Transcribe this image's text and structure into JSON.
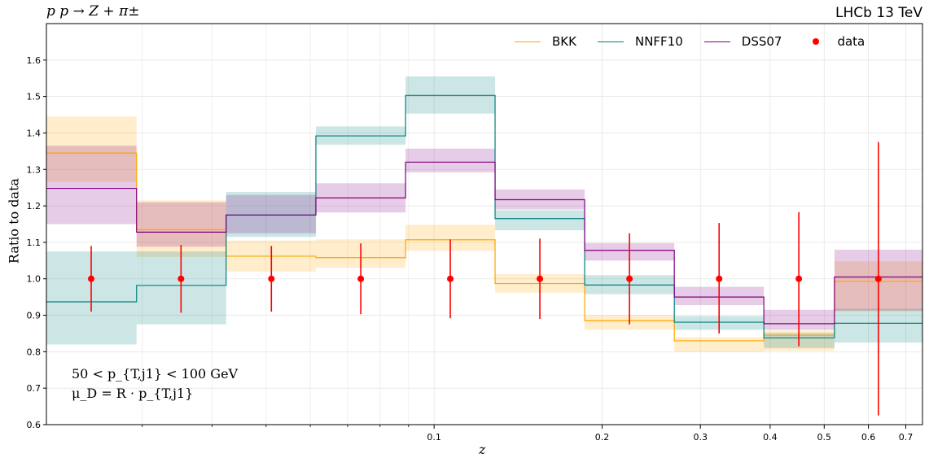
{
  "title_left": "p p → Z + π±",
  "title_right": "LHCb 13 TeV",
  "annotation": {
    "line1": "50 < p_{T,j1} < 100 GeV",
    "line2": "μ_D = R · p_{T,j1}"
  },
  "chart_data": {
    "type": "step",
    "xlabel": "z",
    "ylabel": "Ratio to data",
    "xscale": "log",
    "xlim": [
      0.0202,
      0.75
    ],
    "ylim": [
      0.6,
      1.7
    ],
    "yticks": [
      0.6,
      0.7,
      0.8,
      0.9,
      1.0,
      1.1,
      1.2,
      1.3,
      1.4,
      1.5,
      1.6
    ],
    "xticks_labeled": [
      "0.1",
      "0.2",
      "0.3",
      "0.4",
      "0.5",
      "0.6",
      "0.7"
    ],
    "xticks_labeled_values": [
      0.1,
      0.2,
      0.3,
      0.4,
      0.5,
      0.6,
      0.7
    ],
    "xticks_minor": [
      0.03,
      0.04,
      0.05,
      0.06,
      0.07,
      0.08,
      0.09
    ],
    "grid": true,
    "legend_position": "top-right",
    "bin_edges": [
      0.0202,
      0.0293,
      0.0424,
      0.0614,
      0.0889,
      0.1286,
      0.1861,
      0.2694,
      0.3898,
      0.5216,
      0.75
    ],
    "series": [
      {
        "name": "BKK",
        "color": "#ffa500",
        "values": [
          1.345,
          1.135,
          1.062,
          1.058,
          1.107,
          0.987,
          0.885,
          0.83,
          0.845,
          0.993
        ],
        "band_low": [
          1.265,
          1.06,
          1.02,
          1.03,
          1.077,
          0.962,
          0.86,
          0.8,
          0.803,
          0.91
        ],
        "band_high": [
          1.445,
          1.215,
          1.105,
          1.108,
          1.148,
          1.013,
          0.9,
          0.84,
          0.858,
          1.048
        ]
      },
      {
        "name": "NNFF10",
        "color": "#008080",
        "values": [
          0.937,
          0.982,
          1.175,
          1.392,
          1.503,
          1.165,
          0.983,
          0.881,
          0.838,
          0.878
        ],
        "band_low": [
          0.82,
          0.875,
          1.115,
          1.368,
          1.453,
          1.133,
          0.958,
          0.86,
          0.81,
          0.825
        ],
        "band_high": [
          1.075,
          1.075,
          1.238,
          1.418,
          1.555,
          1.188,
          1.01,
          0.898,
          0.852,
          0.918
        ]
      },
      {
        "name": "DSS07",
        "color": "#800080",
        "values": [
          1.248,
          1.128,
          1.175,
          1.222,
          1.32,
          1.217,
          1.078,
          0.95,
          0.877,
          1.005
        ],
        "band_low": [
          1.15,
          1.088,
          1.125,
          1.182,
          1.292,
          1.19,
          1.05,
          0.928,
          0.86,
          0.913
        ],
        "band_high": [
          1.365,
          1.21,
          1.23,
          1.262,
          1.357,
          1.245,
          1.098,
          0.978,
          0.915,
          1.08
        ]
      }
    ],
    "data": {
      "name": "data",
      "color": "#ff0000",
      "x": [
        0.0243,
        0.0352,
        0.0511,
        0.0739,
        0.1069,
        0.1547,
        0.2239,
        0.3241,
        0.4503,
        0.6252
      ],
      "y": [
        1.0,
        1.0,
        1.0,
        1.0,
        1.0,
        1.0,
        1.0,
        1.0,
        1.0,
        1.0
      ],
      "yerr_low": [
        0.09,
        0.093,
        0.09,
        0.097,
        0.108,
        0.11,
        0.125,
        0.15,
        0.185,
        0.375
      ],
      "yerr_high": [
        0.09,
        0.093,
        0.09,
        0.097,
        0.108,
        0.11,
        0.125,
        0.153,
        0.183,
        0.375
      ]
    }
  }
}
